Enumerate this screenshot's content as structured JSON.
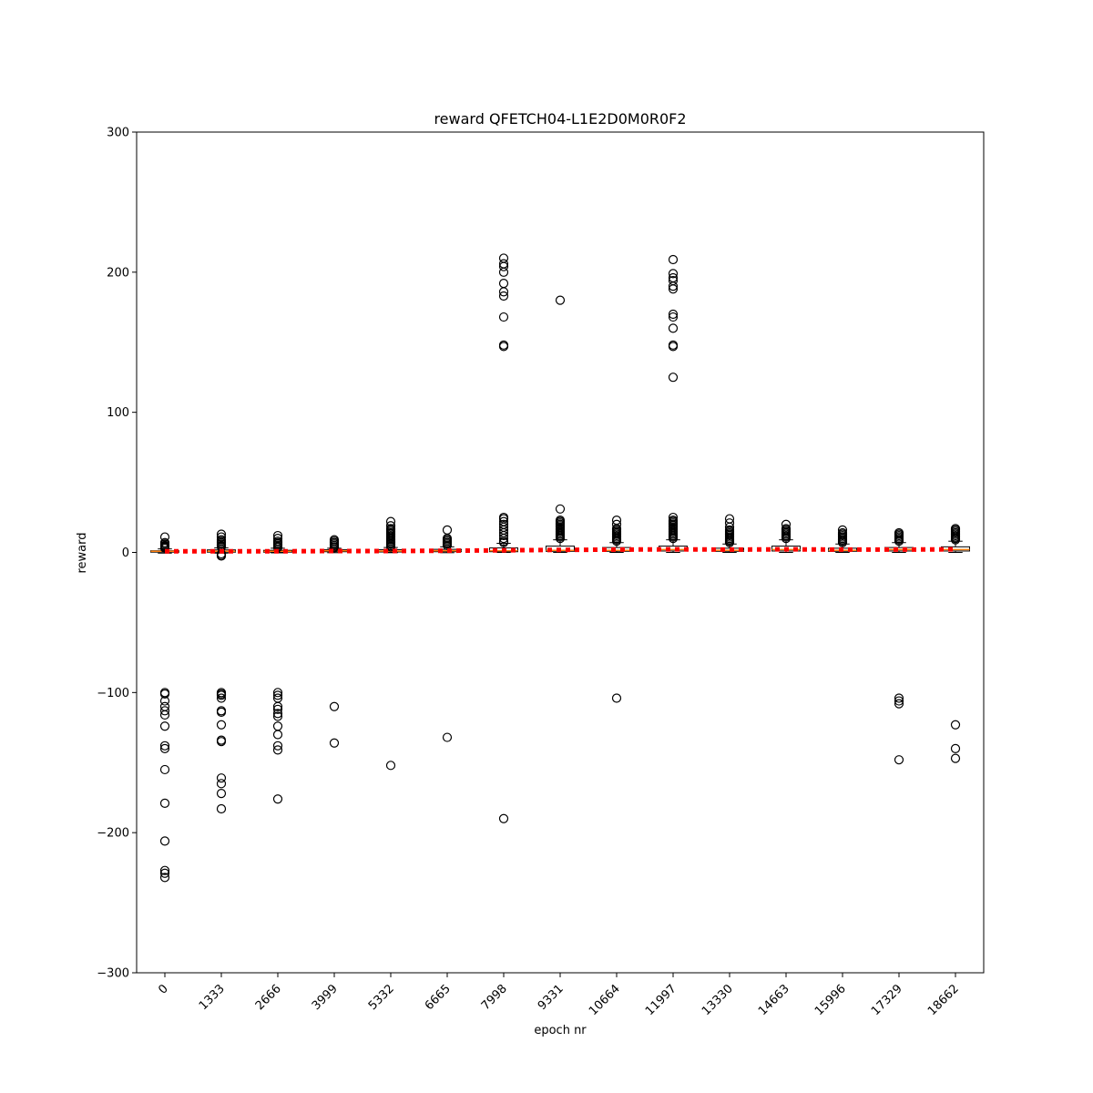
{
  "chart_data": {
    "type": "box",
    "title": "reward QFETCH04-L1E2D0M0R0F2",
    "xlabel": "epoch nr",
    "ylabel": "reward",
    "ylim": [
      -300,
      300
    ],
    "yticks": [
      -300,
      -200,
      -100,
      0,
      100,
      200,
      300
    ],
    "yticks_display": [
      "−300",
      "−200",
      "−100",
      "0",
      "100",
      "200",
      "300"
    ],
    "categories": [
      "0",
      "1333",
      "2666",
      "3999",
      "5332",
      "6665",
      "7998",
      "9331",
      "10664",
      "11997",
      "13330",
      "14663",
      "15996",
      "17329",
      "18662"
    ],
    "grid": false,
    "legend": "none",
    "colors": {
      "box": "#000000",
      "median": "#ff7f0e",
      "mean_line": "#ff0000",
      "outlier": "#000000"
    },
    "boxes": [
      {
        "q1": 0.2,
        "median": 0.8,
        "q3": 1.2,
        "whisker_low": -0.5,
        "whisker_high": 2.5,
        "mean": 0.8,
        "outliers": [
          11,
          7,
          6,
          5,
          4.5,
          4,
          3.5,
          3,
          -100,
          -101,
          -106,
          -110,
          -113,
          -116,
          -124,
          -138,
          -140,
          -155,
          -179,
          -206,
          -227,
          -229,
          -232
        ]
      },
      {
        "q1": 0.2,
        "median": 0.8,
        "q3": 1.8,
        "whisker_low": -0.5,
        "whisker_high": 3.2,
        "mean": 0.8,
        "outliers": [
          13,
          11,
          9,
          8,
          7,
          6,
          5,
          4.5,
          4,
          -1,
          -2,
          -2.5,
          -100,
          -101,
          -102,
          -104,
          -113,
          -114,
          -123,
          -134,
          -135,
          -161,
          -165,
          -172,
          -183
        ]
      },
      {
        "q1": 0.2,
        "median": 0.8,
        "q3": 1.5,
        "whisker_low": -0.3,
        "whisker_high": 3,
        "mean": 0.8,
        "outliers": [
          12,
          10,
          8,
          7,
          6,
          5,
          4,
          3.5,
          -100,
          -102,
          -104,
          -110,
          -112,
          -115,
          -117,
          -124,
          -130,
          -138,
          -141,
          -176
        ]
      },
      {
        "q1": 0.5,
        "median": 1.2,
        "q3": 2,
        "whisker_low": -0.2,
        "whisker_high": 3,
        "mean": 1.0,
        "outliers": [
          9,
          8,
          7,
          6,
          5,
          4,
          3.5,
          -110,
          -136
        ]
      },
      {
        "q1": 0.3,
        "median": 1,
        "q3": 2,
        "whisker_low": -0.2,
        "whisker_high": 3.5,
        "mean": 1.0,
        "outliers": [
          22,
          19,
          17,
          16,
          15,
          14,
          13,
          12,
          11,
          10,
          9,
          8,
          7,
          6,
          5,
          4,
          -152
        ]
      },
      {
        "q1": 0.5,
        "median": 1.2,
        "q3": 2.2,
        "whisker_low": -0.2,
        "whisker_high": 4,
        "mean": 1.2,
        "outliers": [
          16,
          10,
          9,
          8,
          7,
          6,
          5,
          -132
        ]
      },
      {
        "q1": 0.5,
        "median": 1.2,
        "q3": 3.2,
        "whisker_low": 0,
        "whisker_high": 6.5,
        "mean": 1.5,
        "outliers": [
          210,
          206,
          204,
          200,
          192,
          186,
          183,
          168,
          148,
          147,
          25,
          24,
          22,
          20,
          18,
          16,
          14,
          12,
          10,
          8,
          7,
          -190
        ]
      },
      {
        "q1": 0.8,
        "median": 1.5,
        "q3": 4.5,
        "whisker_low": 0,
        "whisker_high": 9,
        "mean": 1.8,
        "outliers": [
          180,
          31,
          23,
          22,
          21,
          20,
          19,
          18,
          17,
          16,
          15,
          14,
          13,
          12,
          11,
          10
        ]
      },
      {
        "q1": 0.8,
        "median": 1.5,
        "q3": 3.5,
        "whisker_low": 0,
        "whisker_high": 7,
        "mean": 2.0,
        "outliers": [
          23,
          20,
          17,
          16,
          15,
          14,
          13,
          12,
          11,
          10,
          9,
          8,
          -104
        ]
      },
      {
        "q1": 1,
        "median": 2,
        "q3": 4.5,
        "whisker_low": 0,
        "whisker_high": 9,
        "mean": 2.2,
        "outliers": [
          209,
          199,
          196,
          194,
          190,
          188,
          170,
          168,
          160,
          148,
          147,
          125,
          25,
          23,
          22,
          21,
          20,
          19,
          18,
          17,
          16,
          15,
          14,
          13,
          12,
          11,
          10
        ]
      },
      {
        "q1": 0.8,
        "median": 1.5,
        "q3": 3,
        "whisker_low": 0,
        "whisker_high": 6,
        "mean": 2.0,
        "outliers": [
          24,
          21,
          18,
          16,
          15,
          14,
          13,
          12,
          11,
          10,
          9,
          8,
          7
        ]
      },
      {
        "q1": 1,
        "median": 2,
        "q3": 4.5,
        "whisker_low": 0,
        "whisker_high": 9,
        "mean": 2.2,
        "outliers": [
          20,
          17,
          16,
          15,
          14,
          13,
          12,
          11,
          10
        ]
      },
      {
        "q1": 0.8,
        "median": 1.5,
        "q3": 3,
        "whisker_low": 0,
        "whisker_high": 6,
        "mean": 2.0,
        "outliers": [
          16,
          14,
          13,
          12,
          11,
          10,
          9,
          8,
          7
        ]
      },
      {
        "q1": 1,
        "median": 2,
        "q3": 3.5,
        "whisker_low": 0,
        "whisker_high": 7,
        "mean": 2.0,
        "outliers": [
          14,
          13,
          12,
          11,
          10,
          9,
          8,
          -104,
          -106,
          -108,
          -148
        ]
      },
      {
        "q1": 1,
        "median": 2,
        "q3": 4,
        "whisker_low": 0,
        "whisker_high": 8,
        "mean": 2.2,
        "outliers": [
          17,
          16,
          15,
          14,
          13,
          12,
          11,
          10,
          9,
          -123,
          -140,
          -147
        ]
      }
    ]
  }
}
